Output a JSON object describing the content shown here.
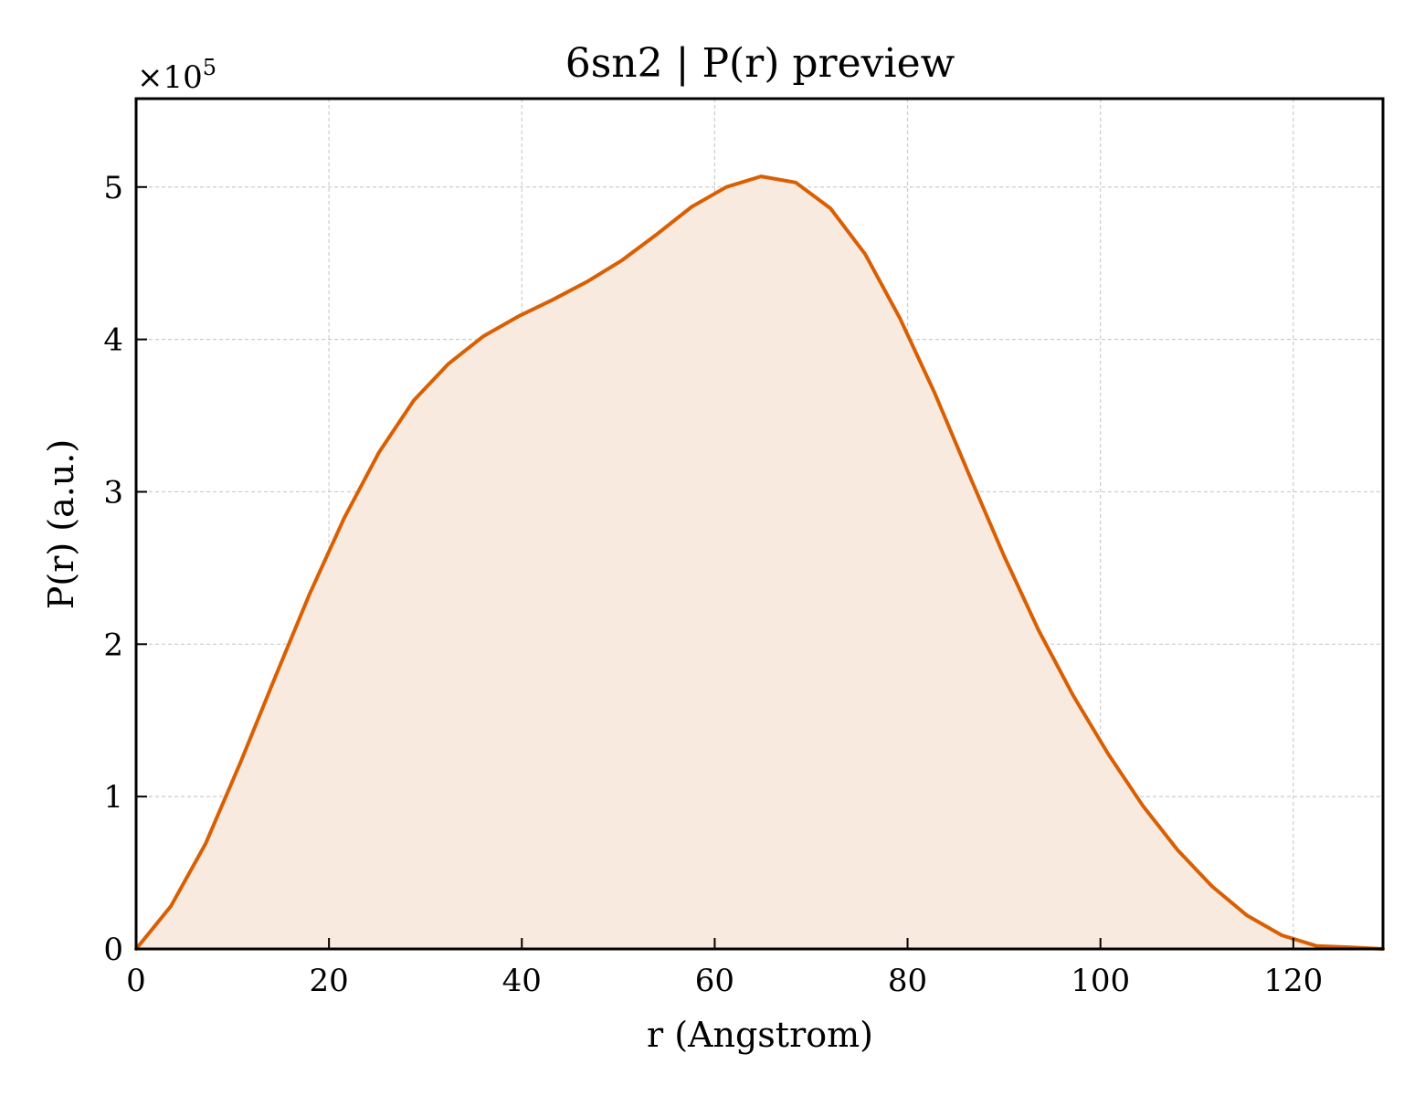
{
  "chart_data": {
    "type": "area",
    "title": "6sn2 | P(r) preview",
    "xlabel": "r (Angstrom)",
    "ylabel": "P(r) (a.u.)",
    "y_multiplier_base": "×10",
    "y_multiplier_exponent": "5",
    "xlim": [
      0,
      129.3
    ],
    "ylim": [
      0,
      5.58
    ],
    "x_ticks": [
      0,
      20,
      40,
      60,
      80,
      100,
      120
    ],
    "y_ticks": [
      0,
      1,
      2,
      3,
      4,
      5
    ],
    "grid": true,
    "legend": "none",
    "line_color": "#D95F02",
    "fill_color": "#F9EADF",
    "series": [
      {
        "x": [
          0,
          3.6,
          7.2,
          10.8,
          14.4,
          18.0,
          21.6,
          25.2,
          28.8,
          32.4,
          36.0,
          39.6,
          43.2,
          46.8,
          50.4,
          54.0,
          57.6,
          61.2,
          64.8,
          68.4,
          72.0,
          75.6,
          79.2,
          82.8,
          86.4,
          90.0,
          93.6,
          97.2,
          100.8,
          104.4,
          108.0,
          111.6,
          115.2,
          118.8,
          122.4,
          126.0,
          129.3
        ],
        "y": [
          0.0,
          0.28,
          0.69,
          1.22,
          1.78,
          2.33,
          2.83,
          3.26,
          3.6,
          3.84,
          4.02,
          4.15,
          4.26,
          4.38,
          4.52,
          4.69,
          4.87,
          5.0,
          5.07,
          5.03,
          4.86,
          4.56,
          4.14,
          3.65,
          3.11,
          2.58,
          2.09,
          1.66,
          1.28,
          0.94,
          0.65,
          0.41,
          0.22,
          0.09,
          0.02,
          0.01,
          0.0
        ]
      }
    ]
  }
}
